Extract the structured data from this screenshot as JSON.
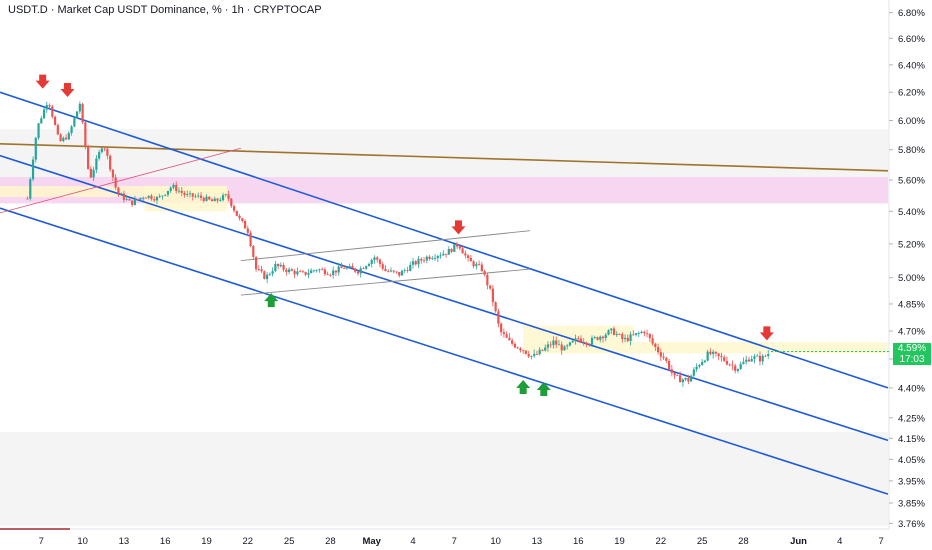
{
  "header": {
    "title": "USDT.D · Market Cap USDT Dominance, % · 1h · CRYPTOCAP"
  },
  "last_price": {
    "value": "4.59%",
    "countdown": "17:03"
  },
  "colors": {
    "up": "#26a69a",
    "down": "#ef5350",
    "channel": "#1e5bd8",
    "trend": "#a0722a",
    "zone_pink": "#f7d6f2",
    "zone_yellow": "#fff7cc",
    "arrow_down": "#e53935",
    "arrow_up": "#1e9e3b",
    "accent": "#22c55e"
  },
  "chart_data": {
    "type": "candlestick",
    "title": "USDT.D · Market Cap USDT Dominance, % · 1h · CRYPTOCAP",
    "ylim": [
      3.74,
      6.9
    ],
    "y_scale": "log",
    "y_ticks": [
      "6.80%",
      "6.60%",
      "6.40%",
      "6.20%",
      "6.00%",
      "5.80%",
      "5.60%",
      "5.40%",
      "5.20%",
      "5.00%",
      "4.85%",
      "4.70%",
      "4.55%",
      "4.40%",
      "4.25%",
      "4.15%",
      "4.05%",
      "3.95%",
      "3.85%",
      "3.76%"
    ],
    "y_tick_values": [
      6.8,
      6.6,
      6.4,
      6.2,
      6.0,
      5.8,
      5.6,
      5.4,
      5.2,
      5.0,
      4.85,
      4.7,
      4.55,
      4.4,
      4.25,
      4.15,
      4.05,
      3.95,
      3.85,
      3.76
    ],
    "x_ticks": [
      "7",
      "10",
      "13",
      "16",
      "19",
      "22",
      "25",
      "28",
      "May",
      "4",
      "7",
      "10",
      "13",
      "16",
      "19",
      "22",
      "25",
      "28",
      "Jun",
      "4",
      "7"
    ],
    "x_tick_days": [
      7,
      10,
      13,
      16,
      19,
      22,
      25,
      28,
      31,
      34,
      37,
      40,
      43,
      46,
      49,
      52,
      55,
      58,
      62,
      65,
      68
    ],
    "grid": false,
    "last_value": 4.59,
    "price_path": [
      [
        6,
        5.48
      ],
      [
        6.7,
        5.95
      ],
      [
        7.5,
        6.15
      ],
      [
        8.3,
        5.85
      ],
      [
        9,
        5.9
      ],
      [
        9.8,
        6.12
      ],
      [
        10.5,
        5.6
      ],
      [
        11.5,
        5.85
      ],
      [
        12.5,
        5.52
      ],
      [
        13.5,
        5.45
      ],
      [
        14.5,
        5.5
      ],
      [
        15.5,
        5.48
      ],
      [
        16.5,
        5.56
      ],
      [
        17.5,
        5.5
      ],
      [
        18.5,
        5.49
      ],
      [
        19.5,
        5.46
      ],
      [
        20.5,
        5.5
      ],
      [
        21.3,
        5.36
      ],
      [
        22,
        5.28
      ],
      [
        22.6,
        5.05
      ],
      [
        23.3,
        5.0
      ],
      [
        24,
        5.07
      ],
      [
        25,
        5.04
      ],
      [
        26,
        5.02
      ],
      [
        27,
        5.05
      ],
      [
        28,
        5.03
      ],
      [
        29,
        5.06
      ],
      [
        30,
        5.04
      ],
      [
        31.2,
        5.12
      ],
      [
        32,
        5.04
      ],
      [
        33,
        5.02
      ],
      [
        34,
        5.08
      ],
      [
        35,
        5.12
      ],
      [
        36.5,
        5.15
      ],
      [
        37.3,
        5.2
      ],
      [
        38,
        5.1
      ],
      [
        39,
        5.05
      ],
      [
        39.7,
        4.9
      ],
      [
        40.3,
        4.7
      ],
      [
        41,
        4.64
      ],
      [
        42,
        4.6
      ],
      [
        42.7,
        4.56
      ],
      [
        43.5,
        4.6
      ],
      [
        44.2,
        4.64
      ],
      [
        45,
        4.6
      ],
      [
        46,
        4.66
      ],
      [
        46.8,
        4.64
      ],
      [
        47.5,
        4.67
      ],
      [
        48.5,
        4.7
      ],
      [
        49.3,
        4.65
      ],
      [
        50.2,
        4.68
      ],
      [
        50.8,
        4.7
      ],
      [
        51.5,
        4.62
      ],
      [
        52.3,
        4.55
      ],
      [
        53,
        4.45
      ],
      [
        54,
        4.44
      ],
      [
        54.7,
        4.52
      ],
      [
        55.5,
        4.58
      ],
      [
        56.5,
        4.55
      ],
      [
        57.5,
        4.5
      ],
      [
        58.5,
        4.56
      ],
      [
        59.3,
        4.55
      ],
      [
        60,
        4.59
      ]
    ],
    "lines": [
      {
        "name": "",
        "kind": "trend",
        "from": [
          4,
          5.84
        ],
        "to": [
          68.5,
          5.66
        ]
      },
      {
        "name": "",
        "kind": "channel",
        "from": [
          4,
          6.2
        ],
        "to": [
          68.5,
          4.4
        ]
      },
      {
        "name": "",
        "kind": "channel",
        "from": [
          4,
          5.76
        ],
        "to": [
          68.5,
          4.14
        ]
      },
      {
        "name": "",
        "kind": "channel",
        "from": [
          4,
          5.42
        ],
        "to": [
          68.5,
          3.89
        ]
      },
      {
        "name": "",
        "kind": "thin-red",
        "from": [
          4,
          5.39
        ],
        "to": [
          21.5,
          5.81
        ]
      },
      {
        "name": "",
        "kind": "box-upper",
        "from": [
          21.5,
          5.1
        ],
        "to": [
          42.5,
          5.28
        ]
      },
      {
        "name": "",
        "kind": "box-lower",
        "from": [
          21.5,
          4.9
        ],
        "to": [
          42.5,
          5.05
        ]
      }
    ],
    "zones": [
      {
        "kind": "pink",
        "x0": 4,
        "x1": 68.5,
        "y0": 5.45,
        "y1": 5.62
      },
      {
        "kind": "grey",
        "x0": 4,
        "x1": 68.5,
        "y0": 5.62,
        "y1": 5.94
      },
      {
        "kind": "grey",
        "x0": 4,
        "x1": 68.5,
        "y0": 3.75,
        "y1": 4.18
      },
      {
        "kind": "yellow",
        "x0": 4,
        "x1": 20.5,
        "y0": 5.49,
        "y1": 5.56
      },
      {
        "kind": "yellow",
        "x0": 14.5,
        "x1": 20.5,
        "y0": 5.4,
        "y1": 5.56
      },
      {
        "kind": "yellow",
        "x0": 42,
        "x1": 50,
        "y0": 4.58,
        "y1": 4.73
      },
      {
        "kind": "yellow",
        "x0": 50,
        "x1": 68.5,
        "y0": 4.58,
        "y1": 4.64
      }
    ],
    "arrows": [
      {
        "dir": "down",
        "x": 7.1,
        "y": 6.24
      },
      {
        "dir": "down",
        "x": 8.9,
        "y": 6.18
      },
      {
        "dir": "down",
        "x": 37.3,
        "y": 5.27
      },
      {
        "dir": "down",
        "x": 59.7,
        "y": 4.66
      },
      {
        "dir": "up",
        "x": 23.7,
        "y": 4.9
      },
      {
        "dir": "up",
        "x": 42.0,
        "y": 4.43
      },
      {
        "dir": "up",
        "x": 43.5,
        "y": 4.42
      }
    ]
  }
}
